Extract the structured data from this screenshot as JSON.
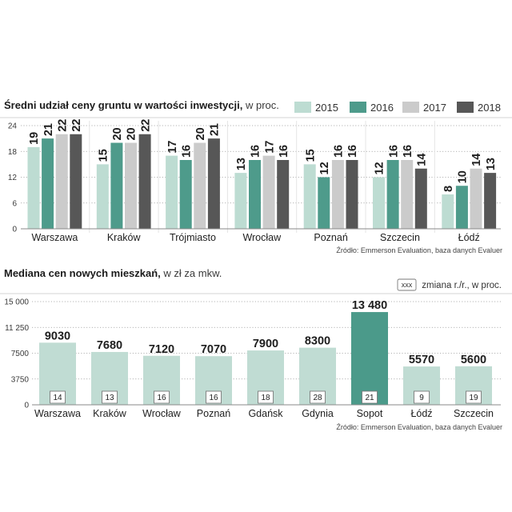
{
  "chart_data": [
    {
      "type": "bar",
      "title": "Średni udział ceny gruntu w wartości inwestycji,",
      "title_unit": "w proc.",
      "categories": [
        "Warszawa",
        "Kraków",
        "Trójmiasto",
        "Wrocław",
        "Poznań",
        "Szczecin",
        "Łódź"
      ],
      "series": [
        {
          "name": "2015",
          "color": "#bddcd2",
          "values": [
            19,
            15,
            17,
            13,
            15,
            12,
            8
          ]
        },
        {
          "name": "2016",
          "color": "#4e9b8b",
          "values": [
            21,
            20,
            16,
            16,
            12,
            16,
            10
          ]
        },
        {
          "name": "2017",
          "color": "#cbcbcb",
          "values": [
            22,
            20,
            20,
            17,
            16,
            16,
            14
          ]
        },
        {
          "name": "2018",
          "color": "#575757",
          "values": [
            22,
            22,
            21,
            16,
            16,
            14,
            13
          ]
        }
      ],
      "yticks": [
        0,
        6,
        12,
        18,
        24
      ],
      "ylim": [
        0,
        24
      ],
      "grid": true,
      "legend_position": "top-right",
      "source": "Źródło: Emmerson Evaluation, baza danych Evaluer"
    },
    {
      "type": "bar",
      "title": "Mediana cen nowych mieszkań,",
      "title_unit": "w zł za mkw.",
      "categories": [
        "Warszawa",
        "Kraków",
        "Wrocław",
        "Poznań",
        "Gdańsk",
        "Gdynia",
        "Sopot",
        "Łódź",
        "Szczecin"
      ],
      "values": [
        9030,
        7680,
        7120,
        7070,
        7900,
        8300,
        13480,
        5570,
        5600
      ],
      "value_labels": [
        "9030",
        "7680",
        "7120",
        "7070",
        "7900",
        "8300",
        "13 480",
        "5570",
        "5600"
      ],
      "change_yoy_pct": [
        14,
        13,
        16,
        16,
        18,
        28,
        21,
        9,
        19
      ],
      "colors": [
        "#c0dcd3",
        "#c0dcd3",
        "#c0dcd3",
        "#c0dcd3",
        "#c0dcd3",
        "#c0dcd3",
        "#4b9a8a",
        "#c0dcd3",
        "#c0dcd3"
      ],
      "yticks": [
        0,
        3750,
        7500,
        11250,
        15000
      ],
      "ytick_labels": [
        "0",
        "3750",
        "7500",
        "11 250",
        "15 000"
      ],
      "ylim": [
        0,
        15000
      ],
      "grid": true,
      "legend": {
        "key_text": "xxx",
        "label": "zmiana r./r., w proc.",
        "position": "top-right"
      },
      "source": "Źródło: Emmerson Evaluation, baza danych Evaluer"
    }
  ]
}
